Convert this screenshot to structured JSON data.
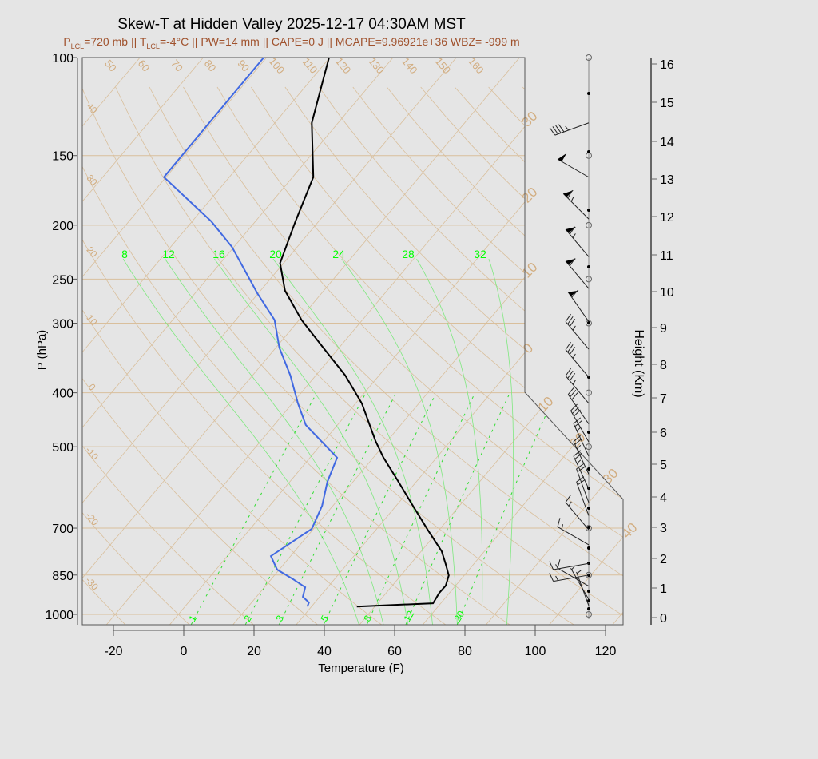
{
  "chart_data": {
    "type": "skew-t",
    "title": "Skew-T at Hidden Valley 2025-12-17 04:30AM MST",
    "subtitle": {
      "p_prefix": "P",
      "p_sub": "LCL",
      "p_val": "=720 mb || T",
      "t_sub": "LCL",
      "rest": "=-4°C || PW=14 mm || CAPE=0 J || MCAPE=9.96921e+36 WBZ= -999 m"
    },
    "xlabel": "Temperature (F)",
    "ylabel": "P (hPa)",
    "y2label": "Height (Km)",
    "xlim": [
      -29,
      125
    ],
    "ylim_hPa": [
      1043,
      100
    ],
    "y_scale": "log",
    "x_ticks": [
      "-20",
      "0",
      "20",
      "40",
      "60",
      "80",
      "100",
      "120"
    ],
    "y_ticks": [
      "100",
      "150",
      "200",
      "250",
      "300",
      "400",
      "500",
      "700",
      "850",
      "1000"
    ],
    "height_ticks": [
      "0",
      "1",
      "2",
      "3",
      "4",
      "5",
      "6",
      "7",
      "8",
      "9",
      "10",
      "11",
      "12",
      "13",
      "14",
      "15",
      "16"
    ],
    "isotherm_labels_C": [
      "30",
      "20",
      "10",
      "0",
      "10",
      "20",
      "30",
      "40"
    ],
    "dry_adiabat_labels_top": [
      "50",
      "60",
      "70",
      "80",
      "90",
      "100",
      "110",
      "120",
      "130",
      "140",
      "150",
      "160"
    ],
    "dry_adiabat_labels_left": [
      "40",
      "30",
      "20",
      "10",
      "0",
      "-10",
      "-20",
      "-30"
    ],
    "moist_adiabat_labels": [
      "8",
      "12",
      "16",
      "20",
      "24",
      "28",
      "32"
    ],
    "mixing_ratio_labels": [
      "1",
      "2",
      "3",
      "5",
      "8",
      "12",
      "20"
    ],
    "colors": {
      "temperature": "#000000",
      "dewpoint": "#4169e1",
      "grid": "#d9bf9c",
      "moist": "#00ff00",
      "subtitle": "#a0522d"
    },
    "temperature_profile": [
      {
        "p": 968,
        "T": 44.9
      },
      {
        "p": 955,
        "T": 65.8
      },
      {
        "p": 915,
        "T": 65.1
      },
      {
        "p": 888,
        "T": 65.2
      },
      {
        "p": 851,
        "T": 63.6
      },
      {
        "p": 812,
        "T": 60.0
      },
      {
        "p": 770,
        "T": 55.8
      },
      {
        "p": 704,
        "T": 46.6
      },
      {
        "p": 632,
        "T": 35.8
      },
      {
        "p": 572,
        "T": 25.9
      },
      {
        "p": 522,
        "T": 16.7
      },
      {
        "p": 488,
        "T": 10.6
      },
      {
        "p": 418,
        "T": -2.2
      },
      {
        "p": 372,
        "T": -13.7
      },
      {
        "p": 332,
        "T": -26.5
      },
      {
        "p": 296,
        "T": -39.3
      },
      {
        "p": 262,
        "T": -51.1
      },
      {
        "p": 234,
        "T": -59.0
      },
      {
        "p": 197,
        "T": -64.6
      },
      {
        "p": 164,
        "T": -70.1
      },
      {
        "p": 131,
        "T": -83.5
      },
      {
        "p": 100,
        "T": -94.2
      }
    ],
    "dewpoint_profile": [
      {
        "p": 968,
        "T": 30.8
      },
      {
        "p": 952,
        "T": 30.3
      },
      {
        "p": 930,
        "T": 27.2
      },
      {
        "p": 894,
        "T": 25.6
      },
      {
        "p": 865,
        "T": 20.3
      },
      {
        "p": 831,
        "T": 13.4
      },
      {
        "p": 786,
        "T": 8.4
      },
      {
        "p": 702,
        "T": 13.5
      },
      {
        "p": 638,
        "T": 10.9
      },
      {
        "p": 578,
        "T": 6.7
      },
      {
        "p": 523,
        "T": 3.7
      },
      {
        "p": 457,
        "T": -13.0
      },
      {
        "p": 418,
        "T": -20.4
      },
      {
        "p": 372,
        "T": -29.3
      },
      {
        "p": 332,
        "T": -39.0
      },
      {
        "p": 296,
        "T": -47.0
      },
      {
        "p": 265,
        "T": -58.3
      },
      {
        "p": 219,
        "T": -76.5
      },
      {
        "p": 197,
        "T": -88.5
      },
      {
        "p": 164,
        "T": -112.6
      },
      {
        "p": 100,
        "T": -112.8
      }
    ],
    "winds_kt": [
      {
        "p": 131,
        "dir": 250,
        "spd": 45
      },
      {
        "p": 164,
        "dir": 300,
        "spd": 50
      },
      {
        "p": 195,
        "dir": 315,
        "spd": 65
      },
      {
        "p": 228,
        "dir": 320,
        "spd": 65
      },
      {
        "p": 260,
        "dir": 320,
        "spd": 60
      },
      {
        "p": 298,
        "dir": 325,
        "spd": 60
      },
      {
        "p": 334,
        "dir": 320,
        "spd": 35
      },
      {
        "p": 375,
        "dir": 320,
        "spd": 35
      },
      {
        "p": 418,
        "dir": 320,
        "spd": 35
      },
      {
        "p": 455,
        "dir": 325,
        "spd": 30
      },
      {
        "p": 490,
        "dir": 330,
        "spd": 30
      },
      {
        "p": 520,
        "dir": 335,
        "spd": 25
      },
      {
        "p": 560,
        "dir": 335,
        "spd": 25
      },
      {
        "p": 595,
        "dir": 335,
        "spd": 25
      },
      {
        "p": 630,
        "dir": 340,
        "spd": 20
      },
      {
        "p": 665,
        "dir": 340,
        "spd": 20
      },
      {
        "p": 705,
        "dir": 320,
        "spd": 15
      },
      {
        "p": 750,
        "dir": 300,
        "spd": 15
      },
      {
        "p": 810,
        "dir": 260,
        "spd": 15
      },
      {
        "p": 850,
        "dir": 260,
        "spd": 15
      },
      {
        "p": 890,
        "dir": 300,
        "spd": 10
      },
      {
        "p": 940,
        "dir": 330,
        "spd": 5
      },
      {
        "p": 965,
        "dir": 340,
        "spd": 5
      }
    ]
  }
}
